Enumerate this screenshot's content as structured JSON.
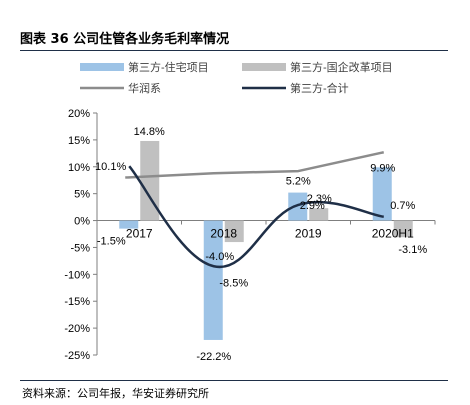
{
  "figure": {
    "title": "图表 36 公司住管各业务毛利率情况",
    "source": "资料来源：公司年报，华安证券研究所"
  },
  "colors": {
    "bar_residential": "#9dc3e6",
    "bar_soe": "#c0c0c0",
    "line_cr": "#8c8c8c",
    "line_total": "#1f2f47",
    "axis": "#7f7f7f",
    "rule": "#1f2f47"
  },
  "chart_data": {
    "type": "bar",
    "categories": [
      "2017",
      "2018",
      "2019",
      "2020H1"
    ],
    "ylim": [
      -25,
      20
    ],
    "yticks": [
      -25,
      -20,
      -15,
      -10,
      -5,
      0,
      5,
      10,
      15,
      20
    ],
    "ytick_labels": [
      "-25%",
      "-20%",
      "-15%",
      "-10%",
      "-5%",
      "0%",
      "5%",
      "10%",
      "15%",
      "20%"
    ],
    "unit": "%",
    "legend_position": "top",
    "series": [
      {
        "name": "第三方-住宅项目",
        "kind": "bar",
        "values": [
          -1.5,
          -22.2,
          5.2,
          9.9
        ],
        "labels": [
          "-1.5%",
          "-22.2%",
          "5.2%",
          "9.9%"
        ]
      },
      {
        "name": "第三方-国企改革项目",
        "kind": "bar",
        "values": [
          14.8,
          -4.0,
          2.3,
          -3.1
        ],
        "labels": [
          "14.8%",
          "-4.0%",
          "2.3%",
          "-3.1%"
        ]
      },
      {
        "name": "华润系",
        "kind": "line",
        "values": [
          8.0,
          8.8,
          9.2,
          12.7
        ],
        "labels": []
      },
      {
        "name": "第三方-合计",
        "kind": "line",
        "smooth": true,
        "values": [
          10.1,
          -8.5,
          2.9,
          0.7
        ],
        "labels": [
          "10.1%",
          "-8.5%",
          "2.9%",
          "0.7%"
        ]
      }
    ]
  }
}
